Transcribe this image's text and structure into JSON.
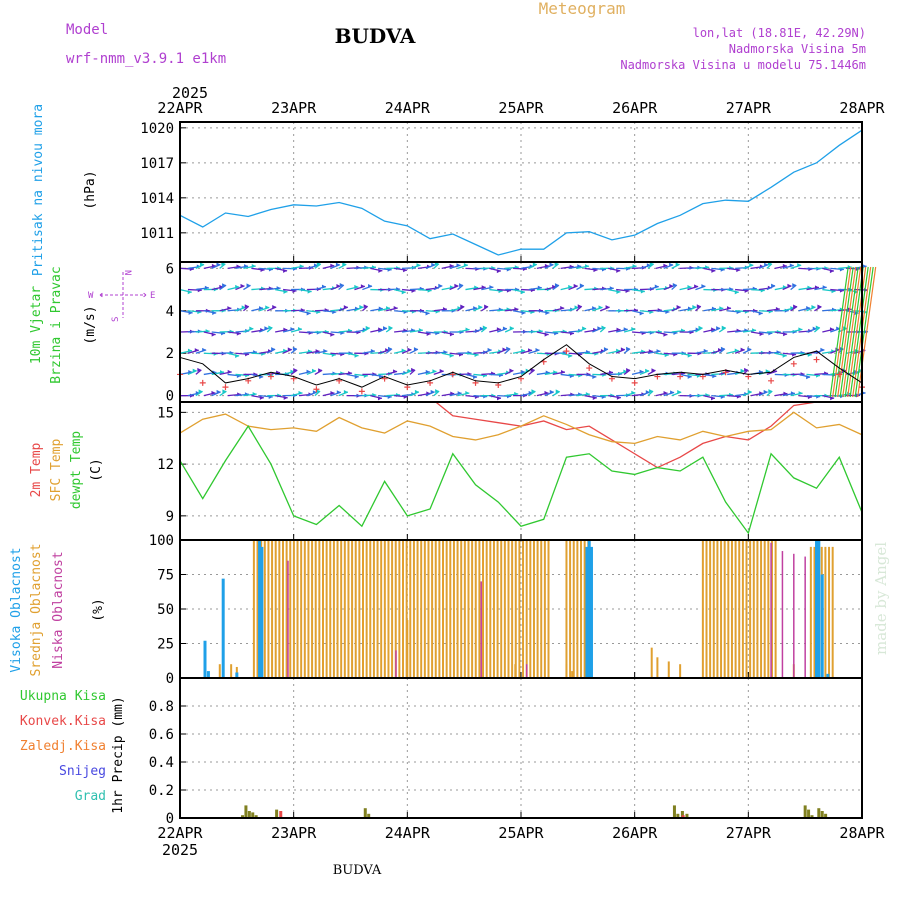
{
  "header": {
    "model_label": "Model",
    "model_value": "wrf-nmm_v3.9.1  e1km",
    "city": "BUDVA",
    "product": "Meteogram",
    "coords": "lon,lat (18.81E, 42.29N)",
    "elevation": "Nadmorska Visina 5m",
    "model_elevation": "Nadmorska Visina u modelu 75.1446m",
    "year": "2025",
    "footer_city": "BUDVA",
    "watermark": "made by Angel"
  },
  "time_axis": {
    "start": "22APR",
    "end": "28APR",
    "ticks": [
      "22APR",
      "23APR",
      "24APR",
      "25APR",
      "26APR",
      "27APR",
      "28APR"
    ]
  },
  "colors": {
    "pressure": "#1fa0e8",
    "temp2m": "#e84848",
    "sfc_temp": "#e0a030",
    "dewpoint": "#30c830",
    "high_cloud": "#1fa0e8",
    "mid_cloud": "#e0a030",
    "low_cloud": "#c040a0",
    "total_precip": "#808020",
    "convective": "#e84848",
    "frozen": "#f08030",
    "snow": "#4848e0",
    "graupel": "#30c0b0",
    "wind_speed": "#000000",
    "gust": "#e84848",
    "wind_barb_dark": "#6020c0",
    "wind_barb_light": "#18c8c8",
    "header_purple": "#b040d0",
    "header_orange": "#e0b060"
  },
  "chart_data": [
    {
      "type": "line",
      "panel": "pressure",
      "ylabel": "Pritisak na nivou mora",
      "unit": "(hPa)",
      "ylim": [
        1008.5,
        1020.5
      ],
      "yticks": [
        1011,
        1014,
        1017,
        1020
      ],
      "grid": true,
      "series": [
        {
          "x": [
            0,
            0.2,
            0.4,
            0.6,
            0.8,
            1.0,
            1.2,
            1.4,
            1.6,
            1.8,
            2.0,
            2.2,
            2.4,
            2.6,
            2.8,
            3.0,
            3.2,
            3.4,
            3.6,
            3.8,
            4.0,
            4.2,
            4.4,
            4.6,
            4.8,
            5.0,
            5.2,
            5.4,
            5.6,
            5.8,
            6.0
          ],
          "values": [
            1012.5,
            1011.5,
            1012.7,
            1012.4,
            1013.0,
            1013.4,
            1013.3,
            1013.6,
            1013.1,
            1012.0,
            1011.6,
            1010.5,
            1010.9,
            1010.0,
            1009.1,
            1009.6,
            1009.6,
            1011.0,
            1011.1,
            1010.4,
            1010.8,
            1011.8,
            1012.5,
            1013.5,
            1013.8,
            1013.7,
            1014.9,
            1016.2,
            1017.0,
            1018.5,
            1019.8
          ]
        }
      ]
    },
    {
      "type": "line",
      "panel": "wind",
      "ylabel": [
        "10m Vjetar",
        "Brzina i Pravac"
      ],
      "unit": "(m/s)",
      "compass": [
        "W",
        "E",
        "N",
        "S"
      ],
      "ylim": [
        -0.3,
        6.3
      ],
      "yticks": [
        0,
        2,
        4,
        6
      ],
      "grid": true,
      "barb_rows": [
        0,
        1,
        2,
        3,
        4,
        5,
        6
      ],
      "series": [
        {
          "name": "speed",
          "x": [
            0,
            0.2,
            0.4,
            0.6,
            0.8,
            1.0,
            1.2,
            1.4,
            1.6,
            1.8,
            2.0,
            2.2,
            2.4,
            2.6,
            2.8,
            3.0,
            3.2,
            3.4,
            3.6,
            3.8,
            4.0,
            4.2,
            4.4,
            4.6,
            4.8,
            5.0,
            5.2,
            5.4,
            5.6,
            5.8,
            6.0
          ],
          "values": [
            1.8,
            1.5,
            0.6,
            0.8,
            1.1,
            0.9,
            0.5,
            0.8,
            0.4,
            0.9,
            0.5,
            0.7,
            1.1,
            0.7,
            0.6,
            0.9,
            1.7,
            2.4,
            1.5,
            0.9,
            0.8,
            1.0,
            1.1,
            1.0,
            1.2,
            1.0,
            1.1,
            1.8,
            2.1,
            1.3,
            0.6
          ]
        },
        {
          "name": "gust",
          "x": [
            0,
            0.2,
            0.4,
            0.6,
            0.8,
            1.0,
            1.2,
            1.4,
            1.6,
            1.8,
            2.0,
            2.2,
            2.4,
            2.6,
            2.8,
            3.0,
            3.2,
            3.4,
            3.6,
            3.8,
            4.0,
            4.2,
            4.4,
            4.6,
            4.8,
            5.0,
            5.2,
            5.4,
            5.6,
            5.8,
            6.0
          ],
          "values": [
            1.0,
            0.6,
            0.4,
            0.7,
            0.9,
            0.8,
            0.3,
            0.7,
            0.2,
            0.8,
            0.4,
            0.6,
            1.0,
            0.6,
            0.5,
            0.8,
            1.6,
            2.1,
            1.3,
            0.8,
            0.6,
            0.9,
            0.9,
            0.9,
            1.1,
            0.9,
            0.7,
            1.5,
            1.7,
            1.0,
            0.4
          ]
        }
      ]
    },
    {
      "type": "line",
      "panel": "temperature",
      "ylabel": [
        "2m Temp",
        "SFC Temp",
        "dewpt Temp"
      ],
      "unit": "(C)",
      "ylim": [
        7.6,
        15.6
      ],
      "yticks": [
        9,
        12,
        15
      ],
      "grid": true,
      "series": [
        {
          "name": "2m Temp",
          "x": [
            2.25,
            2.4,
            2.6,
            2.8,
            3.0,
            3.2,
            3.4,
            3.6,
            3.8,
            4.0,
            4.2,
            4.4,
            4.6,
            4.8,
            5.0,
            5.2,
            5.4,
            5.6
          ],
          "values": [
            15.6,
            14.8,
            14.6,
            14.4,
            14.2,
            14.5,
            14.0,
            14.2,
            13.4,
            12.6,
            11.8,
            12.4,
            13.2,
            13.6,
            13.4,
            14.2,
            15.4,
            15.6
          ]
        },
        {
          "name": "SFC Temp",
          "x": [
            0,
            0.2,
            0.4,
            0.6,
            0.8,
            1.0,
            1.2,
            1.4,
            1.6,
            1.8,
            2.0,
            2.2,
            2.4,
            2.6,
            2.8,
            3.0,
            3.2,
            3.4,
            3.6,
            3.8,
            4.0,
            4.2,
            4.4,
            4.6,
            4.8,
            5.0,
            5.2,
            5.4,
            5.6,
            5.8,
            6.0
          ],
          "values": [
            13.8,
            14.6,
            14.9,
            14.2,
            14.0,
            14.1,
            13.9,
            14.7,
            14.1,
            13.8,
            14.5,
            14.2,
            13.6,
            13.4,
            13.7,
            14.2,
            14.8,
            14.3,
            13.7,
            13.3,
            13.2,
            13.6,
            13.4,
            13.9,
            13.6,
            13.9,
            14.0,
            15.0,
            14.1,
            14.3,
            13.7
          ]
        },
        {
          "name": "dewpt Temp",
          "x": [
            0,
            0.2,
            0.4,
            0.6,
            0.8,
            1.0,
            1.2,
            1.4,
            1.6,
            1.8,
            2.0,
            2.2,
            2.4,
            2.6,
            2.8,
            3.0,
            3.2,
            3.4,
            3.6,
            3.8,
            4.0,
            4.2,
            4.4,
            4.6,
            4.8,
            5.0,
            5.2,
            5.4,
            5.6,
            5.8,
            6.0
          ],
          "values": [
            12.2,
            10.0,
            12.2,
            14.2,
            12.0,
            9.0,
            8.5,
            9.6,
            8.4,
            11.0,
            9.0,
            9.4,
            12.6,
            10.8,
            9.8,
            8.4,
            8.8,
            12.4,
            12.6,
            11.6,
            11.4,
            11.8,
            11.6,
            12.4,
            9.8,
            8.0,
            12.6,
            11.2,
            10.6,
            12.4,
            9.2
          ]
        }
      ]
    },
    {
      "type": "bar",
      "panel": "clouds",
      "ylabel": [
        "Visoka Oblacnost",
        "Srednja Oblacnost",
        "Niska Oblacnost"
      ],
      "unit": "(%)",
      "ylim": [
        0,
        100
      ],
      "yticks": [
        0,
        25,
        50,
        75,
        100
      ],
      "grid": true,
      "series": [
        {
          "name": "Visoka Oblacnost",
          "x": [
            0.22,
            0.25,
            0.38,
            0.5,
            0.7,
            0.72,
            3.58,
            3.6,
            3.62,
            5.6,
            5.62,
            5.65,
            5.7
          ],
          "values": [
            27,
            5,
            72,
            4,
            100,
            95,
            95,
            100,
            95,
            100,
            100,
            75,
            3
          ]
        },
        {
          "name": "Srednja Oblacnost",
          "ranges": [
            [
              0.65,
              3.25,
              100
            ],
            [
              3.4,
              3.6,
              100
            ],
            [
              4.6,
              5.25,
              100
            ],
            [
              5.55,
              5.75,
              95
            ]
          ],
          "extras": [
            [
              0.35,
              10
            ],
            [
              0.45,
              10
            ],
            [
              0.5,
              8
            ],
            [
              2.0,
              42
            ],
            [
              2.95,
              10
            ],
            [
              3.4,
              10
            ],
            [
              3.45,
              5
            ],
            [
              4.15,
              22
            ],
            [
              4.2,
              15
            ],
            [
              4.3,
              12
            ],
            [
              4.4,
              10
            ],
            [
              5.4,
              10
            ]
          ]
        },
        {
          "name": "Niska Oblacnost",
          "x": [
            0.95,
            1.9,
            2.65,
            3.05,
            5.2,
            5.3,
            5.4,
            5.5
          ],
          "values": [
            85,
            20,
            70,
            10,
            98,
            92,
            90,
            88
          ]
        }
      ]
    },
    {
      "type": "bar",
      "panel": "precipitation",
      "ylabel": "1hr Precip",
      "unit": "(mm)",
      "ylim": [
        0,
        1.0
      ],
      "yticks": [
        0,
        0.2,
        0.4,
        0.6,
        0.8
      ],
      "grid": true,
      "legend": [
        "Ukupna Kisa",
        "Konvek.Kisa",
        "Zaledj.Kisa",
        "Snijeg",
        "Grad"
      ],
      "series": [
        {
          "name": "Ukupna Kisa",
          "x": [
            0.55,
            0.58,
            0.61,
            0.64,
            0.67,
            0.85,
            1.63,
            1.66,
            4.35,
            4.38,
            4.42,
            4.46,
            5.5,
            5.53,
            5.56,
            5.62,
            5.65,
            5.68
          ],
          "values": [
            0.02,
            0.09,
            0.05,
            0.04,
            0.02,
            0.06,
            0.07,
            0.03,
            0.09,
            0.03,
            0.05,
            0.03,
            0.09,
            0.06,
            0.02,
            0.07,
            0.05,
            0.03
          ]
        },
        {
          "name": "Konvek.Kisa",
          "x": [
            0.86,
            4.4
          ],
          "values": [
            0.05,
            0.02
          ]
        }
      ]
    }
  ]
}
